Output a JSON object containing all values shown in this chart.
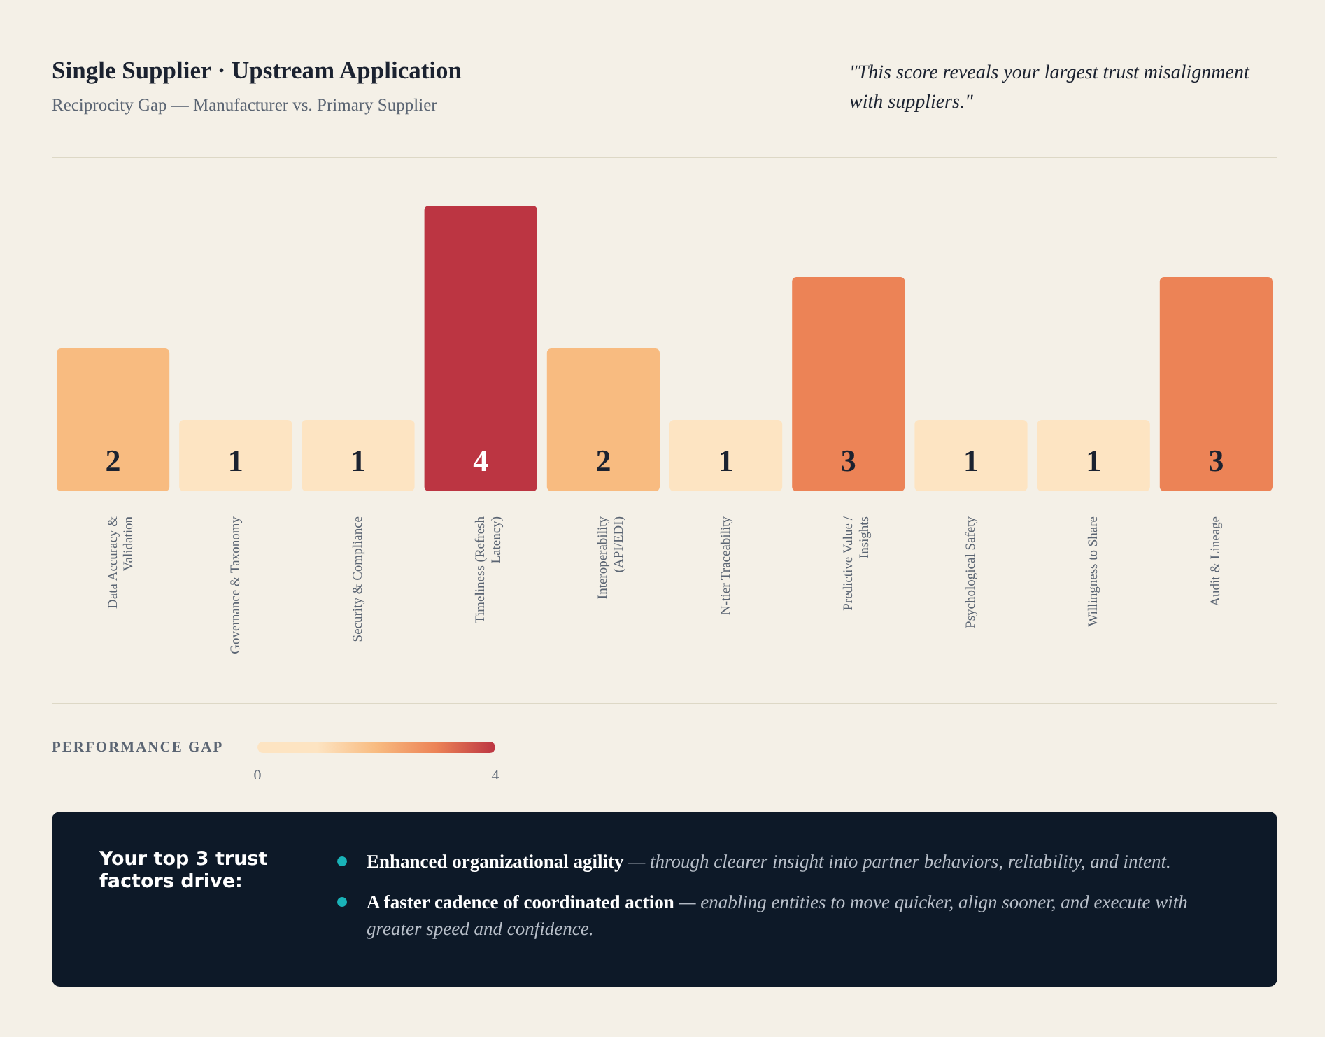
{
  "chart_data": {
    "type": "bar",
    "title": "Single Supplier · Upstream Application",
    "subtitle": "Reciprocity Gap — Manufacturer vs. Primary Supplier",
    "categories": [
      "Data Accuracy & Validation",
      "Governance & Taxonomy",
      "Security & Compliance",
      "Timeliness (Refresh Latency)",
      "Interoperability (API/EDI)",
      "N-tier Traceability",
      "Predictive Value / Insights",
      "Psychological Safety",
      "Willingness to Share",
      "Audit & Lineage"
    ],
    "values": [
      2,
      1,
      1,
      4,
      2,
      1,
      3,
      1,
      1,
      3
    ],
    "colors": [
      "#f8bb80",
      "#fde4c2",
      "#fde4c2",
      "#bc3542",
      "#f8bb80",
      "#fde4c2",
      "#ec8356",
      "#fde4c2",
      "#fde4c2",
      "#ec8356"
    ],
    "data_labels": true,
    "clabel": "PERFORMANCE GAP",
    "clim": [
      0,
      4
    ],
    "cticks": [
      0,
      4
    ],
    "annotations": [
      "\"This score reveals your largest trust misalignment with suppliers.\"",
      "Your top 3 trust factors drive:",
      "Enhanced organizational agility — through clearer insight into partner behaviors, reliability, and intent.",
      "A faster cadence of coordinated action — enabling entities to move quicker, align sooner, and execute with greater speed and confidence."
    ]
  }
}
